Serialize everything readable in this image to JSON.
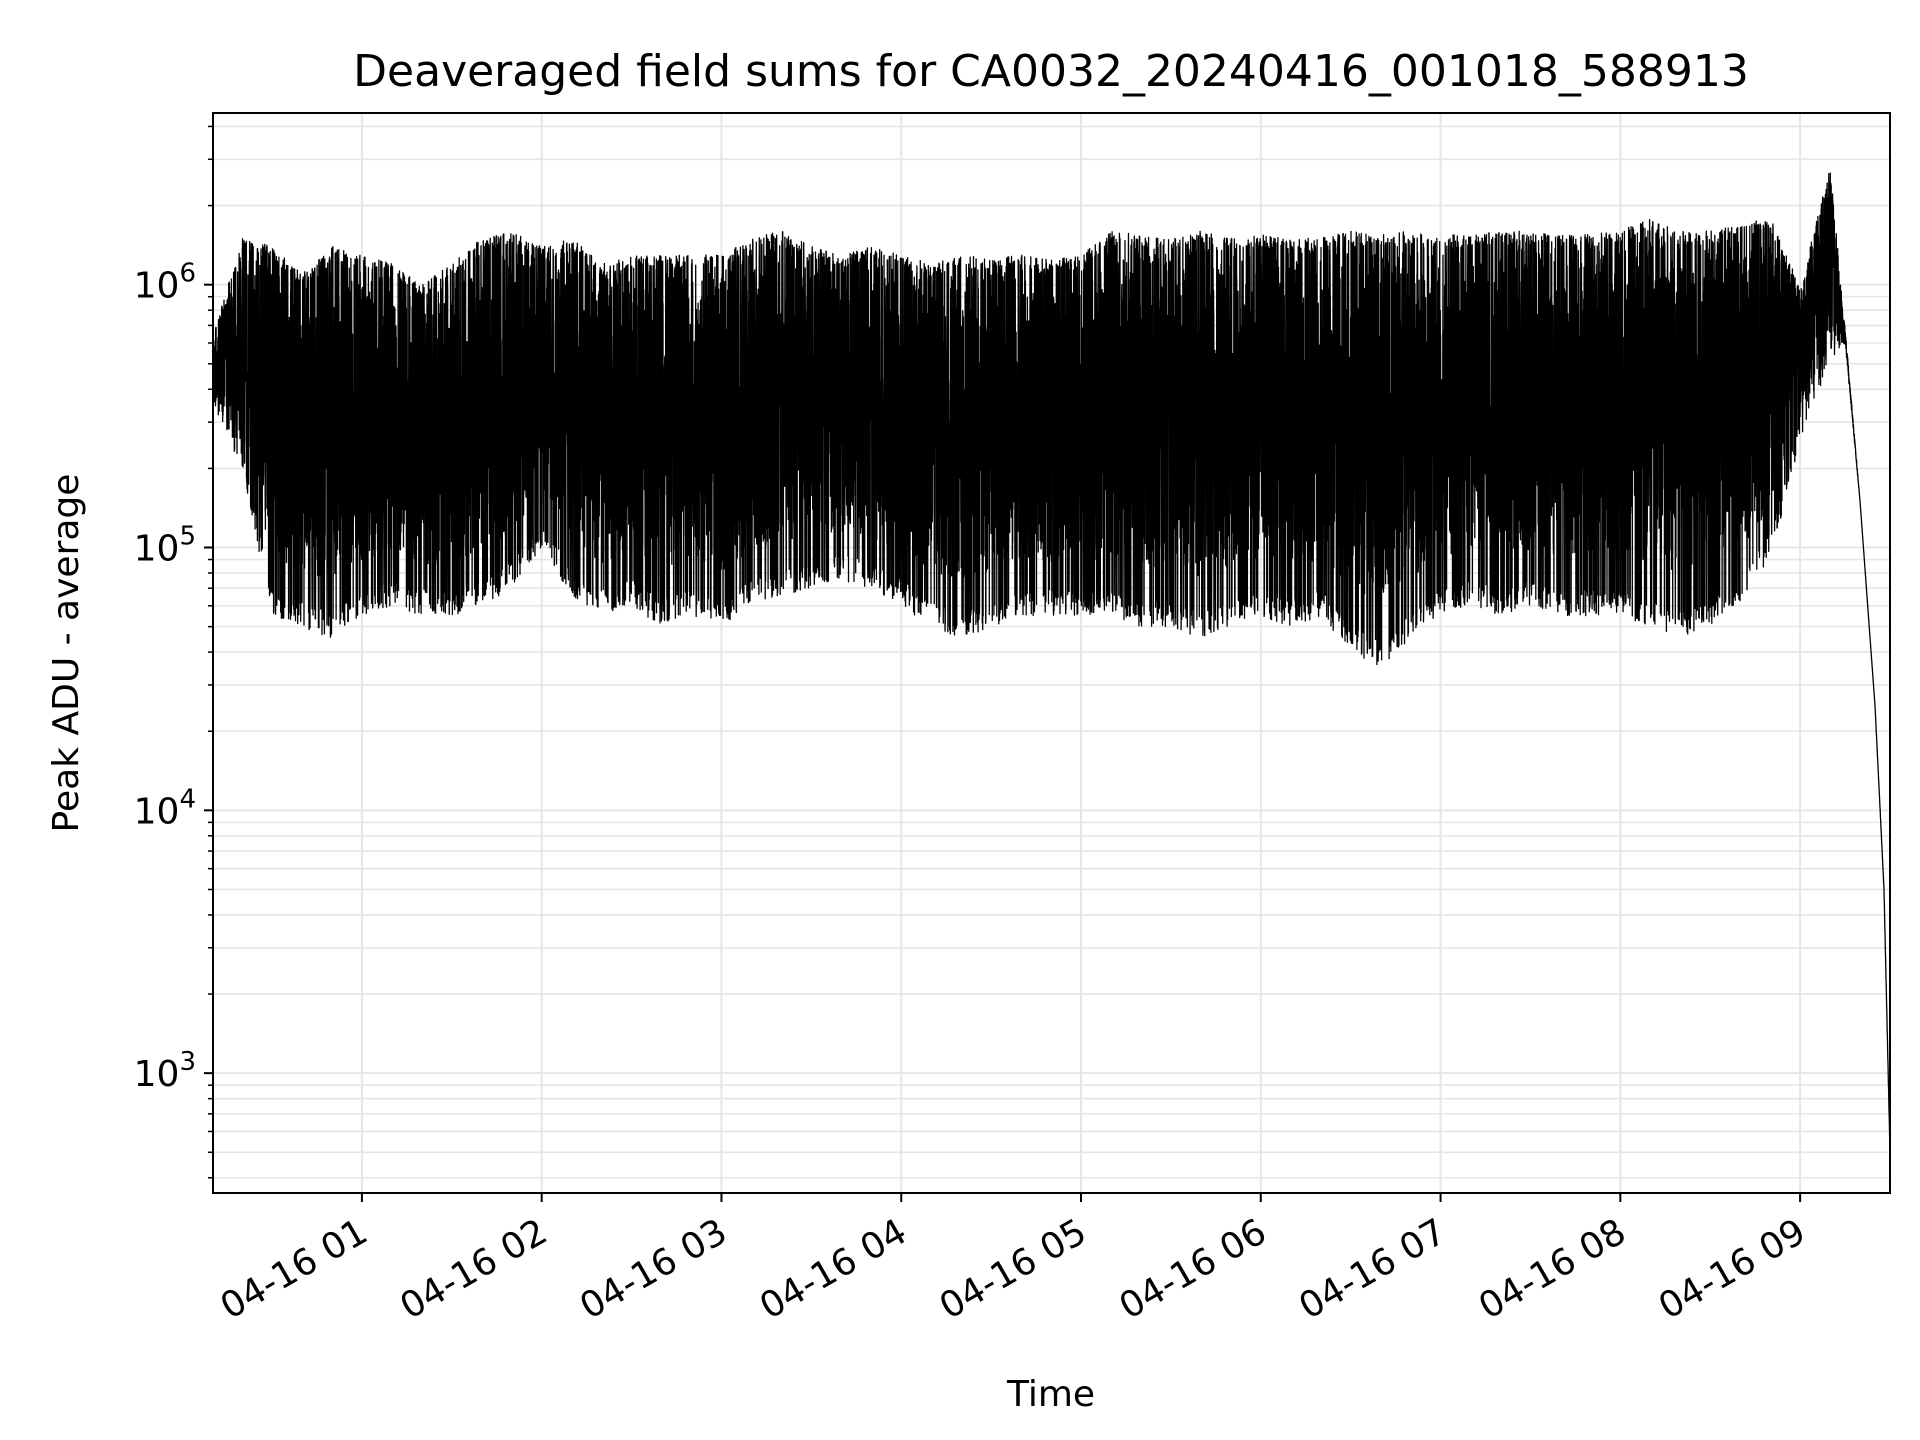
{
  "chart_data": {
    "type": "line",
    "title": "Deaveraged field sums for CA0032_20240416_001018_588913",
    "xlabel": "Time",
    "ylabel": "Peak ADU - average",
    "yscale": "log",
    "ylim": [
      350,
      4500000
    ],
    "xlim": [
      "2024-04-16T00:10:18",
      "2024-04-16T09:30:00"
    ],
    "x_ticks": [
      {
        "t": "2024-04-16T01:00:00",
        "label": "04-16 01"
      },
      {
        "t": "2024-04-16T02:00:00",
        "label": "04-16 02"
      },
      {
        "t": "2024-04-16T03:00:00",
        "label": "04-16 03"
      },
      {
        "t": "2024-04-16T04:00:00",
        "label": "04-16 04"
      },
      {
        "t": "2024-04-16T05:00:00",
        "label": "04-16 05"
      },
      {
        "t": "2024-04-16T06:00:00",
        "label": "04-16 06"
      },
      {
        "t": "2024-04-16T07:00:00",
        "label": "04-16 07"
      },
      {
        "t": "2024-04-16T08:00:00",
        "label": "04-16 08"
      },
      {
        "t": "2024-04-16T09:00:00",
        "label": "04-16 09"
      }
    ],
    "y_ticks": [
      {
        "value": 1000,
        "base": "10",
        "exp": "3"
      },
      {
        "value": 10000,
        "base": "10",
        "exp": "4"
      },
      {
        "value": 100000,
        "base": "10",
        "exp": "5"
      },
      {
        "value": 1000000,
        "base": "10",
        "exp": "6"
      }
    ],
    "grid": true,
    "line_color": "#000000",
    "series": [
      {
        "x": [
          "2024-04-16T00:10:18",
          "2024-04-16T00:20:00",
          "2024-04-16T00:30:00",
          "2024-04-16T00:40:00",
          "2024-04-16T00:50:00",
          "2024-04-16T01:00:00",
          "2024-04-16T01:10:00",
          "2024-04-16T01:20:00",
          "2024-04-16T01:30:00",
          "2024-04-16T01:40:00",
          "2024-04-16T01:50:00",
          "2024-04-16T02:00:00",
          "2024-04-16T02:10:00",
          "2024-04-16T02:20:00",
          "2024-04-16T02:30:00",
          "2024-04-16T02:40:00",
          "2024-04-16T02:50:00",
          "2024-04-16T03:00:00",
          "2024-04-16T03:10:00",
          "2024-04-16T03:20:00",
          "2024-04-16T03:30:00",
          "2024-04-16T03:40:00",
          "2024-04-16T03:50:00",
          "2024-04-16T04:00:00",
          "2024-04-16T04:10:00",
          "2024-04-16T04:20:00",
          "2024-04-16T04:30:00",
          "2024-04-16T04:40:00",
          "2024-04-16T04:50:00",
          "2024-04-16T05:00:00",
          "2024-04-16T05:10:00",
          "2024-04-16T05:20:00",
          "2024-04-16T05:30:00",
          "2024-04-16T05:40:00",
          "2024-04-16T05:50:00",
          "2024-04-16T06:00:00",
          "2024-04-16T06:10:00",
          "2024-04-16T06:20:00",
          "2024-04-16T06:30:00",
          "2024-04-16T06:40:00",
          "2024-04-16T06:50:00",
          "2024-04-16T07:00:00",
          "2024-04-16T07:10:00",
          "2024-04-16T07:20:00",
          "2024-04-16T07:30:00",
          "2024-04-16T07:40:00",
          "2024-04-16T07:50:00",
          "2024-04-16T08:00:00",
          "2024-04-16T08:10:00",
          "2024-04-16T08:20:00",
          "2024-04-16T08:30:00",
          "2024-04-16T08:40:00",
          "2024-04-16T08:50:00",
          "2024-04-16T09:00:00",
          "2024-04-16T09:10:00",
          "2024-04-16T09:15:00",
          "2024-04-16T09:20:00",
          "2024-04-16T09:25:00",
          "2024-04-16T09:28:00",
          "2024-04-16T09:30:00"
        ],
        "y_high": [
          650000,
          1500000,
          1400000,
          1100000,
          1400000,
          1300000,
          1200000,
          1000000,
          1200000,
          1500000,
          1600000,
          1400000,
          1500000,
          1200000,
          1300000,
          1300000,
          1300000,
          1300000,
          1500000,
          1600000,
          1400000,
          1300000,
          1400000,
          1300000,
          1200000,
          1300000,
          1250000,
          1300000,
          1250000,
          1300000,
          1600000,
          1550000,
          1500000,
          1600000,
          1500000,
          1550000,
          1500000,
          1500000,
          1600000,
          1550000,
          1600000,
          1550000,
          1550000,
          1600000,
          1600000,
          1550000,
          1550000,
          1600000,
          1800000,
          1600000,
          1600000,
          1700000,
          1800000,
          1000000,
          2800000,
          700000,
          150000,
          25000,
          5000,
          500
        ],
        "y_low": [
          350000,
          200000,
          55000,
          50000,
          45000,
          55000,
          60000,
          55000,
          55000,
          60000,
          70000,
          100000,
          65000,
          55000,
          60000,
          50000,
          55000,
          50000,
          60000,
          65000,
          70000,
          75000,
          70000,
          60000,
          50000,
          45000,
          50000,
          55000,
          55000,
          55000,
          55000,
          50000,
          50000,
          45000,
          50000,
          55000,
          50000,
          55000,
          40000,
          35000,
          45000,
          55000,
          60000,
          55000,
          60000,
          55000,
          55000,
          55000,
          50000,
          45000,
          50000,
          60000,
          90000,
          250000,
          500000,
          600000,
          150000,
          25000,
          5000,
          500
        ]
      }
    ]
  }
}
